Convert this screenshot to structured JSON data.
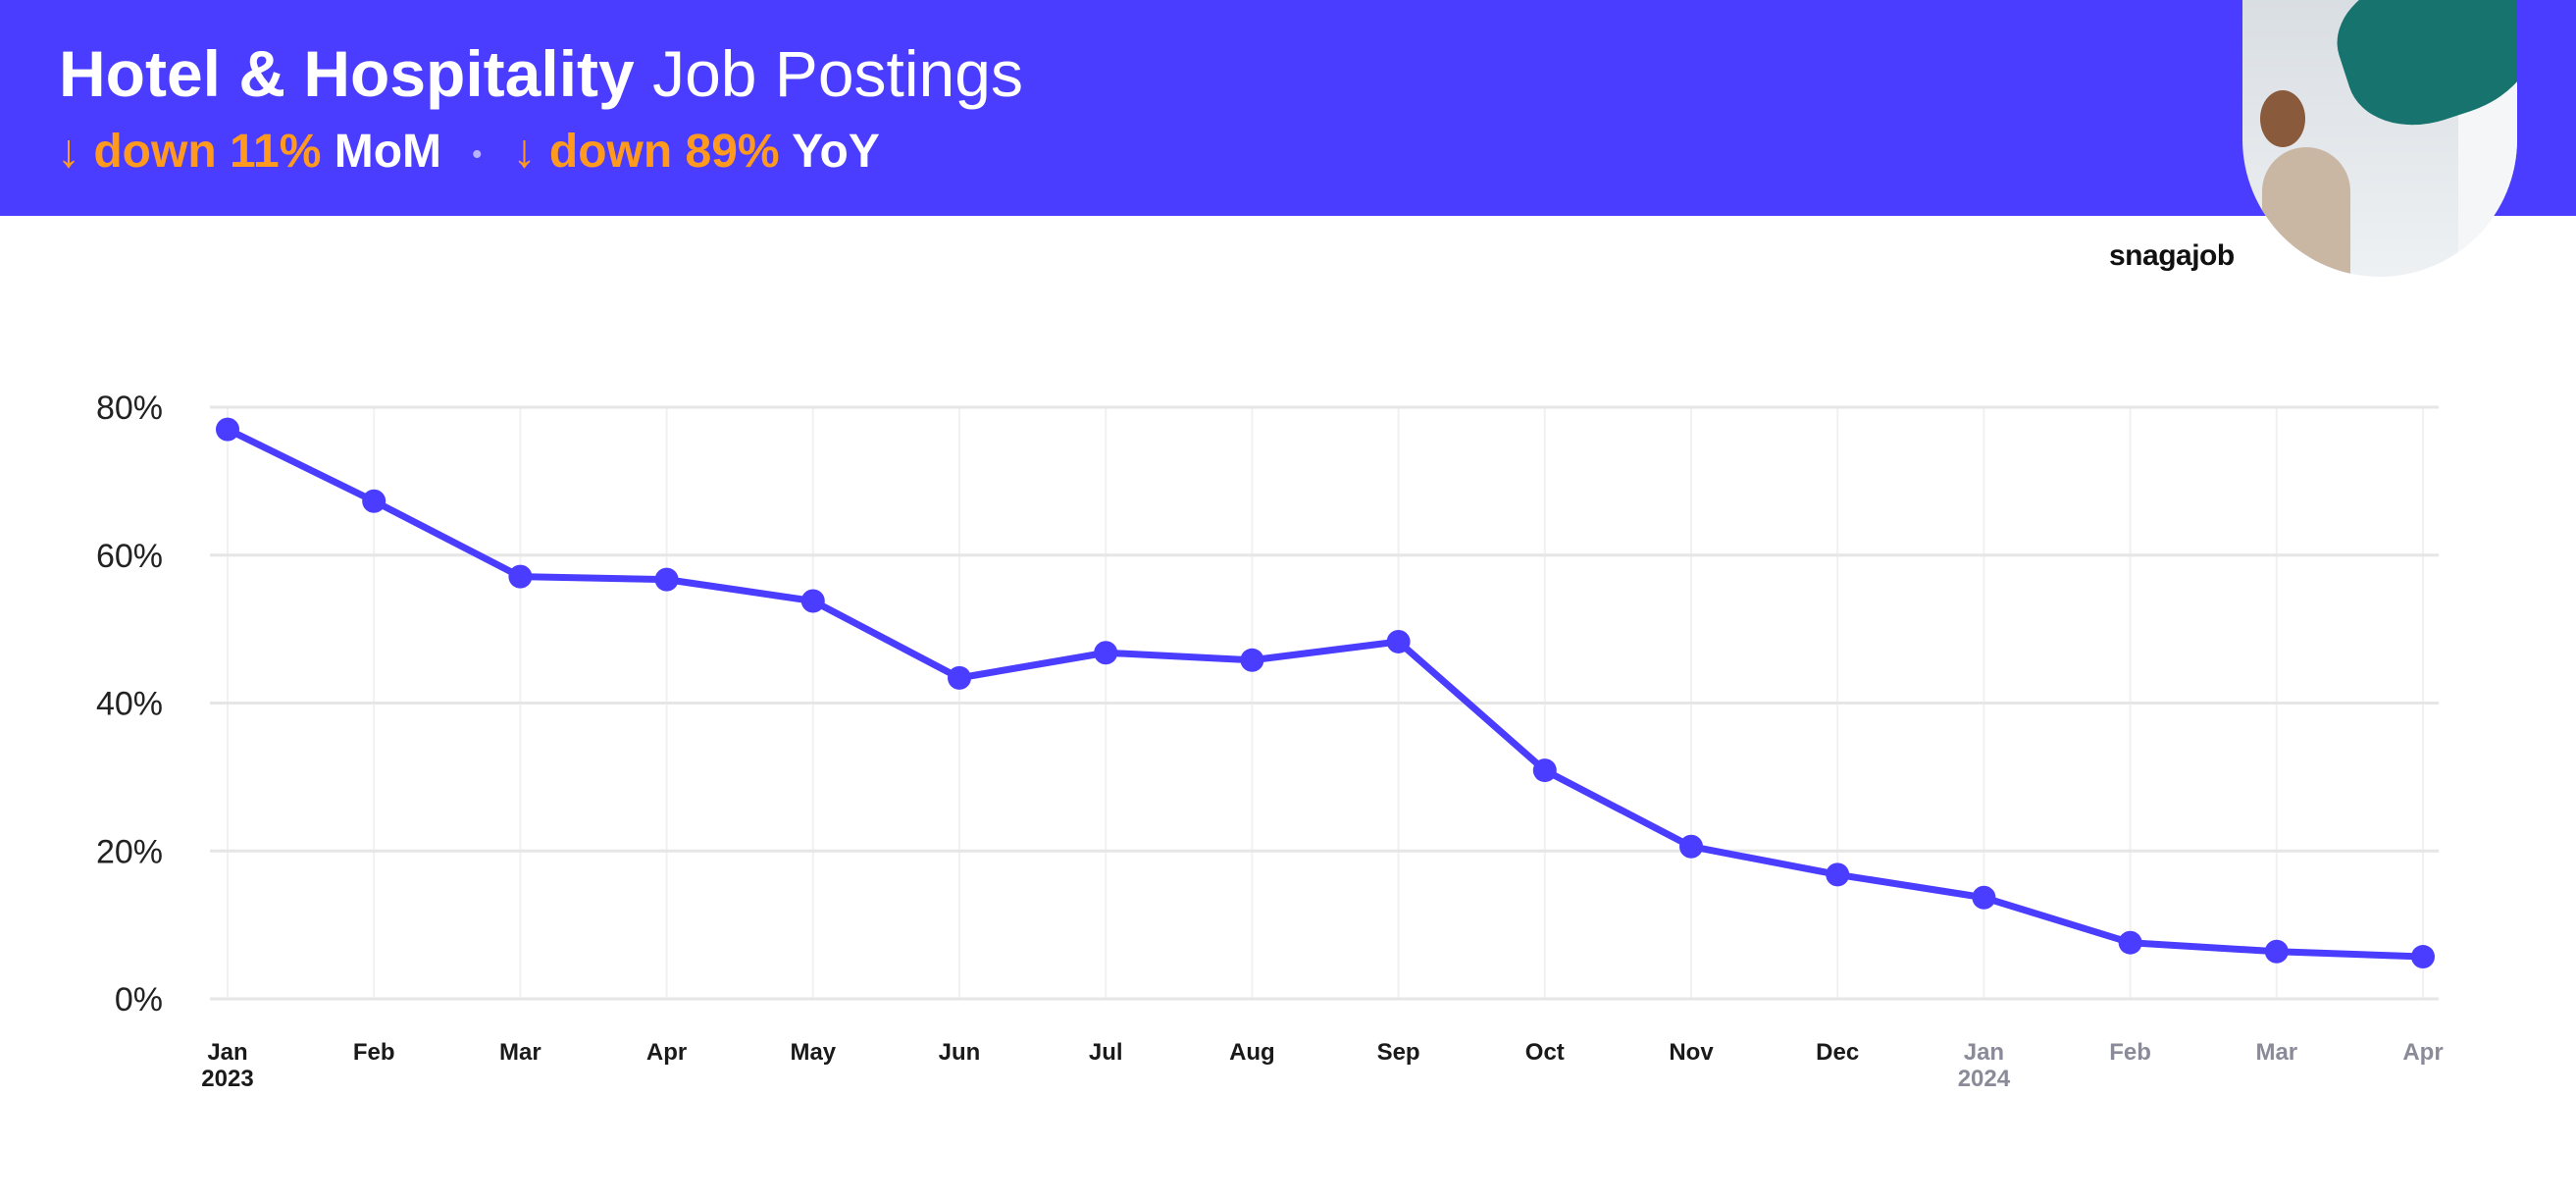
{
  "header": {
    "title_bold": "Hotel & Hospitality",
    "title_light": "Job Postings",
    "mom_arrow": "↓",
    "mom_change": "down 11%",
    "mom_label": "MoM",
    "separator": "•",
    "yoy_arrow": "↓",
    "yoy_change": "down 89%",
    "yoy_label": "YoY",
    "brand": "snagajob"
  },
  "colors": {
    "accent": "#4b3dff",
    "highlight": "#ff9a1f",
    "gridline": "#e6e6e6"
  },
  "chart_data": {
    "type": "line",
    "title": "Hotel & Hospitality Job Postings",
    "categories": [
      "Jan",
      "Feb",
      "Mar",
      "Apr",
      "May",
      "Jun",
      "Jul",
      "Aug",
      "Sep",
      "Oct",
      "Nov",
      "Dec",
      "Jan",
      "Feb",
      "Mar",
      "Apr"
    ],
    "years": [
      "2023",
      "",
      "",
      "",
      "",
      "",
      "",
      "",
      "",
      "",
      "",
      "",
      "2024",
      "",
      "",
      ""
    ],
    "dimmed": [
      false,
      false,
      false,
      false,
      false,
      false,
      false,
      false,
      false,
      false,
      false,
      false,
      true,
      true,
      true,
      true
    ],
    "series": [
      {
        "values": [
          77,
          67.3,
          57.1,
          56.7,
          53.8,
          43.4,
          46.8,
          45.8,
          48.3,
          30.9,
          20.6,
          16.8,
          13.7,
          7.6,
          6.4,
          5.7
        ]
      }
    ],
    "yticks": [
      0,
      20,
      40,
      60,
      80
    ],
    "ytick_labels": [
      "0%",
      "20%",
      "40%",
      "60%",
      "80%"
    ],
    "ylim": [
      0,
      80
    ],
    "grid": true,
    "xlabel": "",
    "ylabel": ""
  }
}
